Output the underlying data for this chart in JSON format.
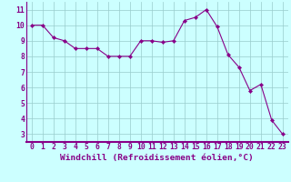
{
  "x": [
    0,
    1,
    2,
    3,
    4,
    5,
    6,
    7,
    8,
    9,
    10,
    11,
    12,
    13,
    14,
    15,
    16,
    17,
    18,
    19,
    20,
    21,
    22,
    23
  ],
  "y": [
    10.0,
    10.0,
    9.2,
    9.0,
    8.5,
    8.5,
    8.5,
    8.0,
    8.0,
    8.0,
    9.0,
    9.0,
    8.9,
    9.0,
    10.3,
    10.5,
    11.0,
    9.9,
    8.1,
    7.3,
    5.8,
    6.2,
    3.9,
    3.0
  ],
  "line_color": "#880088",
  "marker_color": "#880088",
  "bg_color": "#ccffff",
  "grid_color": "#99cccc",
  "xlabel": "Windchill (Refroidissement éolien,°C)",
  "xlim": [
    -0.5,
    23.5
  ],
  "ylim": [
    2.5,
    11.5
  ],
  "yticks": [
    3,
    4,
    5,
    6,
    7,
    8,
    9,
    10,
    11
  ],
  "xticks": [
    0,
    1,
    2,
    3,
    4,
    5,
    6,
    7,
    8,
    9,
    10,
    11,
    12,
    13,
    14,
    15,
    16,
    17,
    18,
    19,
    20,
    21,
    22,
    23
  ],
  "tick_label_fontsize": 5.8,
  "xlabel_fontsize": 6.8,
  "text_color": "#880088",
  "spine_color": "#880088",
  "bottom_bar_color": "#880088"
}
